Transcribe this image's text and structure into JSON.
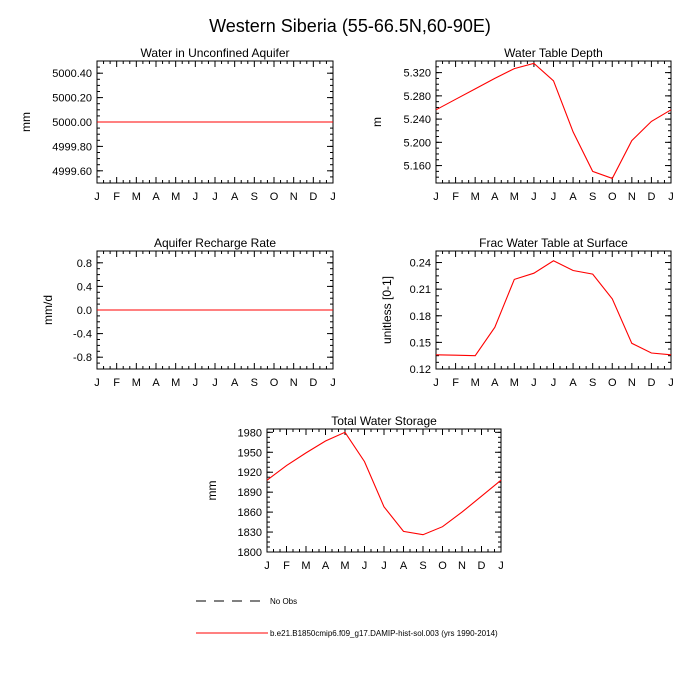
{
  "figure": {
    "title": "Western Siberia (55-66.5N,60-90E)",
    "months": [
      "J",
      "F",
      "M",
      "A",
      "M",
      "J",
      "J",
      "A",
      "S",
      "O",
      "N",
      "D",
      "J"
    ]
  },
  "legend": {
    "obs_label": "No Obs",
    "model_label": "b.e21.B1850cmip6.f09_g17.DAMIP-hist-sol.003 (yrs 1990-2014)",
    "obs_color": "#000000",
    "model_color": "#ff0000"
  },
  "chart_data": [
    {
      "type": "line",
      "title": "Water in Unconfined Aquifer",
      "ylabel": "mm",
      "ylim": [
        4999.5,
        5000.5
      ],
      "yticks": [
        4999.6,
        4999.8,
        5000.0,
        5000.2,
        5000.4
      ],
      "ytick_labels": [
        "4999.60",
        "4999.80",
        "5000.00",
        "5000.20",
        "5000.40"
      ],
      "x": [
        "J",
        "F",
        "M",
        "A",
        "M",
        "J",
        "J",
        "A",
        "S",
        "O",
        "N",
        "D",
        "J"
      ],
      "series": [
        {
          "values": [
            5000,
            5000,
            5000,
            5000,
            5000,
            5000,
            5000,
            5000,
            5000,
            5000,
            5000,
            5000,
            5000
          ],
          "color": "#ff0000"
        }
      ]
    },
    {
      "type": "line",
      "title": "Water Table Depth",
      "ylabel": "m",
      "ylim": [
        5.13,
        5.34
      ],
      "yticks": [
        5.16,
        5.2,
        5.24,
        5.28,
        5.32
      ],
      "ytick_labels": [
        "5.160",
        "5.200",
        "5.240",
        "5.280",
        "5.320"
      ],
      "x": [
        "J",
        "F",
        "M",
        "A",
        "M",
        "J",
        "J",
        "A",
        "S",
        "O",
        "N",
        "D",
        "J"
      ],
      "series": [
        {
          "values": [
            5.256,
            5.274,
            5.292,
            5.31,
            5.327,
            5.336,
            5.306,
            5.218,
            5.15,
            5.138,
            5.203,
            5.236,
            5.256
          ],
          "color": "#ff0000"
        }
      ]
    },
    {
      "type": "line",
      "title": "Aquifer Recharge Rate",
      "ylabel": "mm/d",
      "ylim": [
        -1.0,
        1.0
      ],
      "yticks": [
        -0.8,
        -0.4,
        0.0,
        0.4,
        0.8
      ],
      "ytick_labels": [
        "-0.8",
        "-0.4",
        "0.0",
        "0.4",
        "0.8"
      ],
      "x": [
        "J",
        "F",
        "M",
        "A",
        "M",
        "J",
        "J",
        "A",
        "S",
        "O",
        "N",
        "D",
        "J"
      ],
      "series": [
        {
          "values": [
            0,
            0,
            0,
            0,
            0,
            0,
            0,
            0,
            0,
            0,
            0,
            0,
            0
          ],
          "color": "#ff0000"
        }
      ]
    },
    {
      "type": "line",
      "title": "Frac Water Table at Surface",
      "ylabel": "unitless [0-1]",
      "ylim": [
        0.12,
        0.253
      ],
      "yticks": [
        0.12,
        0.15,
        0.18,
        0.21,
        0.24
      ],
      "ytick_labels": [
        "0.12",
        "0.15",
        "0.18",
        "0.21",
        "0.24"
      ],
      "x": [
        "J",
        "F",
        "M",
        "A",
        "M",
        "J",
        "J",
        "A",
        "S",
        "O",
        "N",
        "D",
        "J"
      ],
      "series": [
        {
          "values": [
            0.136,
            0.1355,
            0.135,
            0.167,
            0.221,
            0.228,
            0.242,
            0.231,
            0.227,
            0.199,
            0.149,
            0.138,
            0.136
          ],
          "color": "#ff0000"
        }
      ]
    },
    {
      "type": "line",
      "title": "Total Water Storage",
      "ylabel": "mm",
      "ylim": [
        1800,
        1985
      ],
      "yticks": [
        1800,
        1830,
        1860,
        1890,
        1920,
        1950,
        1980
      ],
      "ytick_labels": [
        "1800",
        "1830",
        "1860",
        "1890",
        "1920",
        "1950",
        "1980"
      ],
      "x": [
        "J",
        "F",
        "M",
        "A",
        "M",
        "J",
        "J",
        "A",
        "S",
        "O",
        "N",
        "D",
        "J"
      ],
      "series": [
        {
          "values": [
            1908,
            1930,
            1949,
            1967,
            1980,
            1936,
            1868,
            1831,
            1826,
            1838,
            1860,
            1884,
            1908
          ],
          "color": "#ff0000"
        }
      ]
    }
  ]
}
